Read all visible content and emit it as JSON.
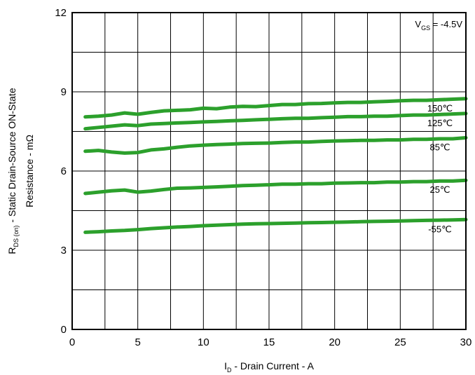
{
  "chart_data": {
    "type": "line",
    "xlabel": {
      "main": "I",
      "sub": "D",
      "rest": " - Drain Current - A"
    },
    "ylabel": {
      "line1_main": "R",
      "line1_sub": "DS (on)",
      "line1_rest": " - Static Drain-Source ON-State",
      "line2": "Resistance - mΩ"
    },
    "annotation": {
      "main": "V",
      "sub": "GS",
      "rest": " = -4.5V"
    },
    "xlim": [
      0,
      30
    ],
    "ylim": [
      0,
      12
    ],
    "xticks": [
      0,
      5,
      10,
      15,
      20,
      25,
      30
    ],
    "yticks": [
      0,
      3,
      6,
      9,
      12
    ],
    "xtick_labels": [
      "0",
      "5",
      "10",
      "15",
      "20",
      "25",
      "30"
    ],
    "ytick_labels": [
      "0",
      "3",
      "6",
      "9",
      "12"
    ],
    "grid": true,
    "line_color": "#2ca02c",
    "series": [
      {
        "name": "150℃",
        "x": [
          1,
          2,
          3,
          4,
          5,
          6,
          7,
          8,
          9,
          10,
          11,
          12,
          13,
          14,
          15,
          16,
          17,
          18,
          19,
          20,
          21,
          22,
          23,
          24,
          25,
          26,
          27,
          28,
          29,
          30
        ],
        "values": [
          8.05,
          8.08,
          8.12,
          8.2,
          8.15,
          8.22,
          8.28,
          8.3,
          8.32,
          8.38,
          8.36,
          8.42,
          8.45,
          8.44,
          8.48,
          8.52,
          8.52,
          8.55,
          8.56,
          8.58,
          8.6,
          8.6,
          8.62,
          8.64,
          8.66,
          8.68,
          8.68,
          8.7,
          8.72,
          8.74
        ]
      },
      {
        "name": "125℃",
        "x": [
          1,
          2,
          3,
          4,
          5,
          6,
          7,
          8,
          9,
          10,
          11,
          12,
          13,
          14,
          15,
          16,
          17,
          18,
          19,
          20,
          21,
          22,
          23,
          24,
          25,
          26,
          27,
          28,
          29,
          30
        ],
        "values": [
          7.6,
          7.65,
          7.7,
          7.75,
          7.72,
          7.78,
          7.8,
          7.82,
          7.84,
          7.86,
          7.88,
          7.9,
          7.92,
          7.94,
          7.96,
          7.98,
          8.0,
          8.0,
          8.02,
          8.04,
          8.06,
          8.06,
          8.08,
          8.08,
          8.1,
          8.12,
          8.12,
          8.14,
          8.16,
          8.18
        ]
      },
      {
        "name": "85℃",
        "x": [
          1,
          2,
          3,
          4,
          5,
          6,
          7,
          8,
          9,
          10,
          11,
          12,
          13,
          14,
          15,
          16,
          17,
          18,
          19,
          20,
          21,
          22,
          23,
          24,
          25,
          26,
          27,
          28,
          29,
          30
        ],
        "values": [
          6.75,
          6.78,
          6.72,
          6.68,
          6.7,
          6.8,
          6.84,
          6.9,
          6.95,
          6.98,
          7.0,
          7.02,
          7.04,
          7.05,
          7.06,
          7.08,
          7.1,
          7.1,
          7.12,
          7.14,
          7.15,
          7.16,
          7.16,
          7.18,
          7.18,
          7.2,
          7.2,
          7.22,
          7.22,
          7.26
        ]
      },
      {
        "name": "25℃",
        "x": [
          1,
          2,
          3,
          4,
          5,
          6,
          7,
          8,
          9,
          10,
          11,
          12,
          13,
          14,
          15,
          16,
          17,
          18,
          19,
          20,
          21,
          22,
          23,
          24,
          25,
          26,
          27,
          28,
          29,
          30
        ],
        "values": [
          5.15,
          5.2,
          5.25,
          5.28,
          5.2,
          5.24,
          5.3,
          5.35,
          5.36,
          5.38,
          5.4,
          5.42,
          5.45,
          5.46,
          5.48,
          5.5,
          5.5,
          5.52,
          5.52,
          5.54,
          5.55,
          5.56,
          5.56,
          5.58,
          5.58,
          5.6,
          5.6,
          5.62,
          5.62,
          5.65
        ]
      },
      {
        "name": "-55℃",
        "x": [
          1,
          2,
          3,
          4,
          5,
          6,
          7,
          8,
          9,
          10,
          11,
          12,
          13,
          14,
          15,
          16,
          17,
          18,
          19,
          20,
          21,
          22,
          23,
          24,
          25,
          26,
          27,
          28,
          29,
          30
        ],
        "values": [
          3.68,
          3.7,
          3.73,
          3.75,
          3.78,
          3.82,
          3.85,
          3.88,
          3.9,
          3.93,
          3.95,
          3.97,
          3.99,
          4.0,
          4.01,
          4.02,
          4.03,
          4.04,
          4.05,
          4.06,
          4.07,
          4.08,
          4.09,
          4.1,
          4.11,
          4.12,
          4.13,
          4.14,
          4.15,
          4.16
        ]
      }
    ]
  }
}
